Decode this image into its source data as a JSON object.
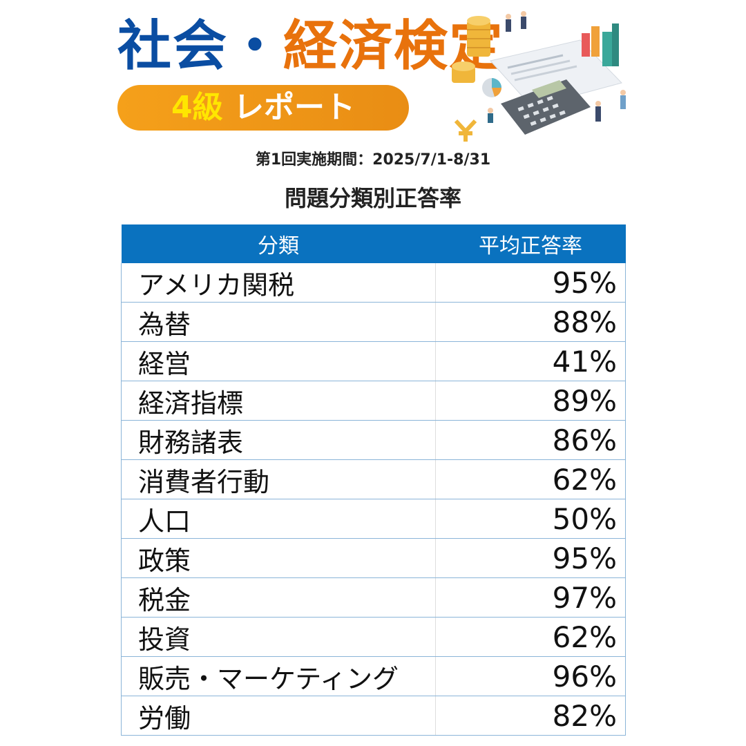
{
  "header": {
    "title_part1": "社会・",
    "title_part2": "経済検定",
    "badge_grade": "4級",
    "badge_text": "レポート"
  },
  "period": "第1回実施期間：2025/7/1-8/31",
  "subtitle": "問題分類別正答率",
  "table": {
    "headers": [
      "分類",
      "平均正答率"
    ],
    "rows": [
      {
        "category": "アメリカ関税",
        "rate": "95%"
      },
      {
        "category": "為替",
        "rate": "88%"
      },
      {
        "category": "経営",
        "rate": "41%"
      },
      {
        "category": "経済指標",
        "rate": "89%"
      },
      {
        "category": "財務諸表",
        "rate": "86%"
      },
      {
        "category": "消費者行動",
        "rate": "62%"
      },
      {
        "category": "人口",
        "rate": "50%"
      },
      {
        "category": "政策",
        "rate": "95%"
      },
      {
        "category": "税金",
        "rate": "97%"
      },
      {
        "category": "投資",
        "rate": "62%"
      },
      {
        "category": "販売・マーケティング",
        "rate": "96%"
      },
      {
        "category": "労働",
        "rate": "82%"
      }
    ]
  },
  "colors": {
    "title_blue": "#0a4da2",
    "title_orange": "#e8720c",
    "badge_orange": "#f5a01a",
    "badge_yellow": "#ffe600",
    "table_header_blue": "#0a72bf"
  },
  "illustration": "coins-calculator-chart-people-illustration"
}
